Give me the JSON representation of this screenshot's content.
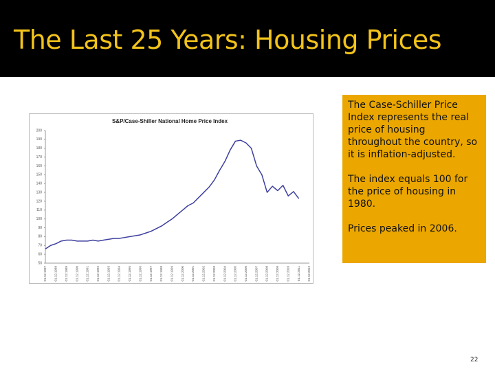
{
  "slide": {
    "title": "The Last 25 Years:  Housing Prices",
    "paragraphs": [
      "The Case-Schiller Price Index represents the real price of housing throughout the country, so it is inflation-adjusted.",
      "The index equals 100 for the price of housing in 1980.",
      "Prices peaked in 2006."
    ],
    "page_number": "22"
  },
  "chart_data": {
    "type": "line",
    "title": "S&P/Case-Shiller National Home Price Index",
    "categories": [
      "01.12.1987",
      null,
      "01.12.1988",
      null,
      "01.12.1989",
      null,
      "01.12.1990",
      null,
      "01.12.1991",
      null,
      "01.12.1992",
      null,
      "01.12.1993",
      null,
      "01.12.1994",
      null,
      "01.12.1995",
      null,
      "01.12.1996",
      null,
      "01.12.1997",
      null,
      "01.12.1998",
      null,
      "01.12.1999",
      null,
      "01.12.2000",
      null,
      "01.12.2001",
      null,
      "01.12.2002",
      null,
      "01.12.2003",
      null,
      "01.12.2004",
      null,
      "01.12.2005",
      null,
      "01.12.2006",
      null,
      "01.12.2007",
      null,
      "01.12.2008",
      null,
      "01.12.2009",
      null,
      "01.12.2010",
      null,
      "01.12.2011",
      null,
      "01.12.2012"
    ],
    "values": [
      66,
      70,
      72,
      75,
      76,
      76,
      75,
      75,
      75,
      76,
      75,
      76,
      77,
      78,
      78,
      79,
      80,
      81,
      82,
      84,
      86,
      89,
      92,
      96,
      100,
      105,
      110,
      115,
      118,
      124,
      130,
      136,
      144,
      155,
      165,
      178,
      188,
      189,
      186,
      180,
      160,
      150,
      130,
      137,
      132,
      138,
      126,
      131,
      123,
      null,
      null
    ],
    "color": "#3d3f9e",
    "ylim": [
      50,
      200
    ],
    "yticks": [
      50,
      60,
      70,
      80,
      90,
      100,
      110,
      120,
      130,
      140,
      150,
      160,
      170,
      180,
      190,
      200
    ],
    "grid": false
  }
}
